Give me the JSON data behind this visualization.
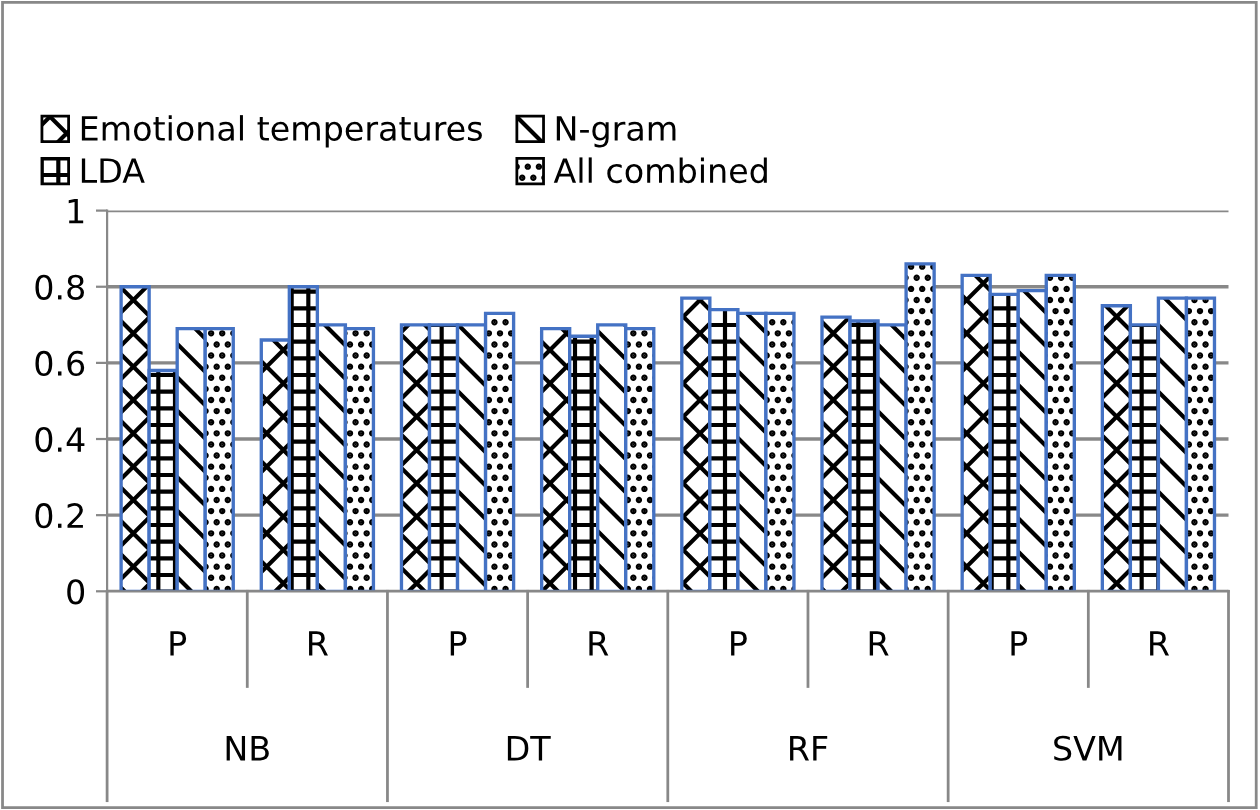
{
  "chart_data": {
    "type": "bar",
    "categories": [
      "P",
      "R",
      "P",
      "R",
      "P",
      "R",
      "P",
      "R"
    ],
    "series": [
      {
        "name": "Emotional temperatures",
        "color": "#000000",
        "values": [
          0.8,
          0.66,
          0.7,
          0.69,
          0.77,
          0.72,
          0.83,
          0.75
        ]
      },
      {
        "name": "LDA",
        "color": "#000000",
        "values": [
          0.58,
          0.8,
          0.7,
          0.67,
          0.74,
          0.71,
          0.78,
          0.7
        ]
      },
      {
        "name": "N-gram",
        "color": "#000000",
        "values": [
          0.69,
          0.7,
          0.7,
          0.7,
          0.73,
          0.7,
          0.79,
          0.77
        ]
      },
      {
        "name": "All combined",
        "color": "#000000",
        "values": [
          0.69,
          0.69,
          0.73,
          0.69,
          0.73,
          0.86,
          0.83,
          0.77
        ]
      }
    ],
    "annotations": [
      "NB",
      "DT",
      "RF",
      "SVM"
    ],
    "ylim": [
      0,
      1
    ],
    "yticks": [
      0,
      0.2,
      0.4,
      0.6,
      0.8,
      1
    ],
    "grid": "y",
    "legend": "top"
  }
}
